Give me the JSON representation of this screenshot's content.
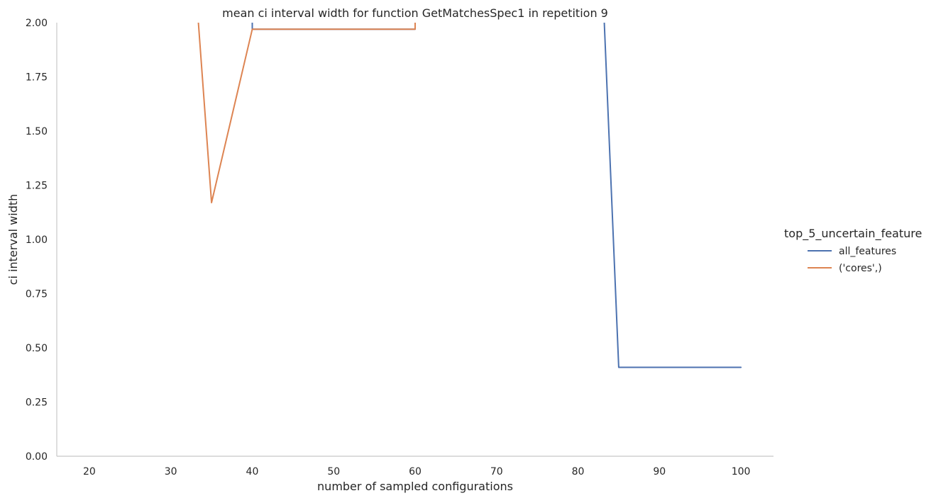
{
  "chart_data": {
    "type": "line",
    "title": "mean ci interval width for function GetMatchesSpec1 in repetition 9",
    "xlabel": "number of sampled configurations",
    "ylabel": "ci interval width",
    "xlim": [
      16,
      104
    ],
    "ylim": [
      0,
      2
    ],
    "x_ticks": [
      "20",
      "30",
      "40",
      "50",
      "60",
      "70",
      "80",
      "90",
      "100"
    ],
    "y_ticks": [
      "0.00",
      "0.25",
      "0.50",
      "0.75",
      "1.00",
      "1.25",
      "1.50",
      "1.75",
      "2.00"
    ],
    "grid": false,
    "legend": {
      "title": "top_5_uncertain_feature",
      "placement": "right"
    },
    "series": [
      {
        "name": "all_features",
        "color": "#4c72b0",
        "x": [
          40,
          40,
          60,
          60,
          83,
          85,
          100
        ],
        "y": [
          2.2,
          1.97,
          1.97,
          2.2,
          2.2,
          0.41,
          0.41
        ]
      },
      {
        "name": "('cores',)",
        "color": "#dd8452",
        "x": [
          33,
          35,
          40,
          60,
          60
        ],
        "y": [
          2.2,
          1.17,
          1.97,
          1.97,
          2.2
        ]
      }
    ]
  }
}
